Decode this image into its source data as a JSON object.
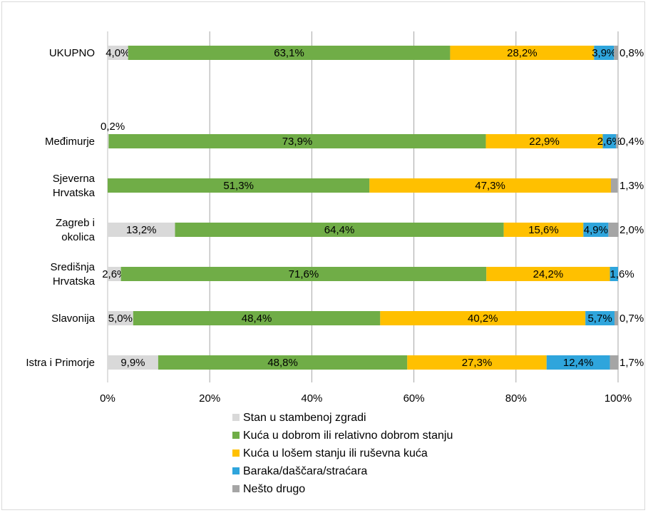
{
  "chart_data": {
    "type": "bar",
    "orientation": "horizontal",
    "stacked": true,
    "percent": true,
    "categories": [
      "UKUPNO",
      "",
      "Međimurje",
      "Sjeverna Hrvatska",
      "Zagreb i okolica",
      "Središnja Hrvatska",
      "Slavonija",
      "Istra i Primorje"
    ],
    "category_lines": [
      [
        "UKUPNO"
      ],
      [],
      [
        "Međimurje"
      ],
      [
        "Sjeverna",
        "Hrvatska"
      ],
      [
        "Zagreb i",
        "okolica"
      ],
      [
        "Središnja",
        "Hrvatska"
      ],
      [
        "Slavonija"
      ],
      [
        "Istra i Primorje"
      ]
    ],
    "series": [
      {
        "name": "Stan u stambenoj zgradi",
        "color": "#d9d9d9",
        "values": [
          4.0,
          null,
          0.2,
          0.0,
          13.2,
          2.6,
          5.0,
          9.9
        ],
        "labels": [
          "4,0%",
          "",
          "0,2%",
          "",
          "13,2%",
          "2,6%",
          "5,0%",
          "9,9%"
        ]
      },
      {
        "name": "Kuća u dobrom ili relativno dobrom stanju",
        "color": "#70ad47",
        "values": [
          63.1,
          null,
          73.9,
          51.3,
          64.4,
          71.6,
          48.4,
          48.8
        ],
        "labels": [
          "63,1%",
          "",
          "73,9%",
          "51,3%",
          "64,4%",
          "71,6%",
          "48,4%",
          "48,8%"
        ]
      },
      {
        "name": "Kuća u lošem stanju ili ruševna kuća",
        "color": "#ffc000",
        "values": [
          28.2,
          null,
          22.9,
          47.3,
          15.6,
          24.2,
          40.2,
          27.3
        ],
        "labels": [
          "28,2%",
          "",
          "22,9%",
          "47,3%",
          "15,6%",
          "24,2%",
          "40,2%",
          "27,3%"
        ]
      },
      {
        "name": "Baraka/daščara/straćara",
        "color": "#2fa5dc",
        "values": [
          3.9,
          null,
          2.6,
          0.0,
          4.9,
          1.6,
          5.7,
          12.4
        ],
        "labels": [
          "3,9%",
          "",
          "2,6%",
          "",
          "4,9%",
          "1,6%",
          "5,7%",
          "12,4%"
        ]
      },
      {
        "name": "Nešto drugo",
        "color": "#a5a5a5",
        "values": [
          0.8,
          null,
          0.4,
          1.3,
          2.0,
          0.0,
          0.7,
          1.7
        ],
        "labels": [
          "0,8%",
          "",
          "0,4%",
          "1,3%",
          "2,0%",
          "",
          "0,7%",
          "1,7%"
        ]
      }
    ],
    "x_ticks": [
      "0%",
      "20%",
      "40%",
      "60%",
      "80%",
      "100%"
    ],
    "xlim": [
      0,
      100
    ],
    "grid": true,
    "legend_position": "bottom"
  }
}
